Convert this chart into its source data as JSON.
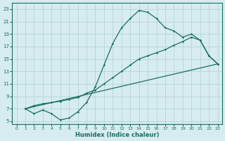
{
  "xlabel": "Humidex (Indice chaleur)",
  "xlim": [
    -0.5,
    23.5
  ],
  "ylim": [
    4.5,
    24.0
  ],
  "xticks": [
    0,
    1,
    2,
    3,
    4,
    5,
    6,
    7,
    8,
    9,
    10,
    11,
    12,
    13,
    14,
    15,
    16,
    17,
    18,
    19,
    20,
    21,
    22,
    23
  ],
  "yticks": [
    5,
    7,
    9,
    11,
    13,
    15,
    17,
    19,
    21,
    23
  ],
  "background_color": "#d6ecee",
  "line_color": "#1a6e64",
  "grid_color": "#aed0d4",
  "line1_x": [
    1,
    2,
    3,
    4,
    5,
    6,
    7,
    8,
    9,
    10,
    11,
    12,
    13,
    14,
    15,
    16,
    17,
    18,
    19,
    20,
    21,
    22,
    23
  ],
  "line1_y": [
    7,
    6.2,
    6.8,
    6.2,
    5.2,
    5.5,
    6.5,
    8.0,
    10.5,
    14.0,
    17.5,
    20.0,
    21.5,
    22.8,
    22.5,
    21.5,
    20.0,
    19.5,
    18.5,
    19.0,
    18.0,
    15.5,
    14.2
  ],
  "line2_x": [
    1,
    2,
    3,
    4,
    5,
    6,
    7,
    8,
    9,
    10,
    11,
    12,
    13,
    14,
    15,
    16,
    17,
    18,
    19,
    20,
    21,
    22,
    23
  ],
  "line2_y": [
    7,
    7.5,
    7.8,
    8.0,
    8.2,
    8.5,
    8.8,
    9.5,
    10.0,
    11.0,
    12.0,
    13.0,
    14.0,
    15.0,
    15.5,
    16.0,
    16.5,
    17.2,
    17.8,
    18.5,
    18.0,
    15.5,
    14.2
  ],
  "line3_x": [
    1,
    23
  ],
  "line3_y": [
    7,
    14.2
  ]
}
